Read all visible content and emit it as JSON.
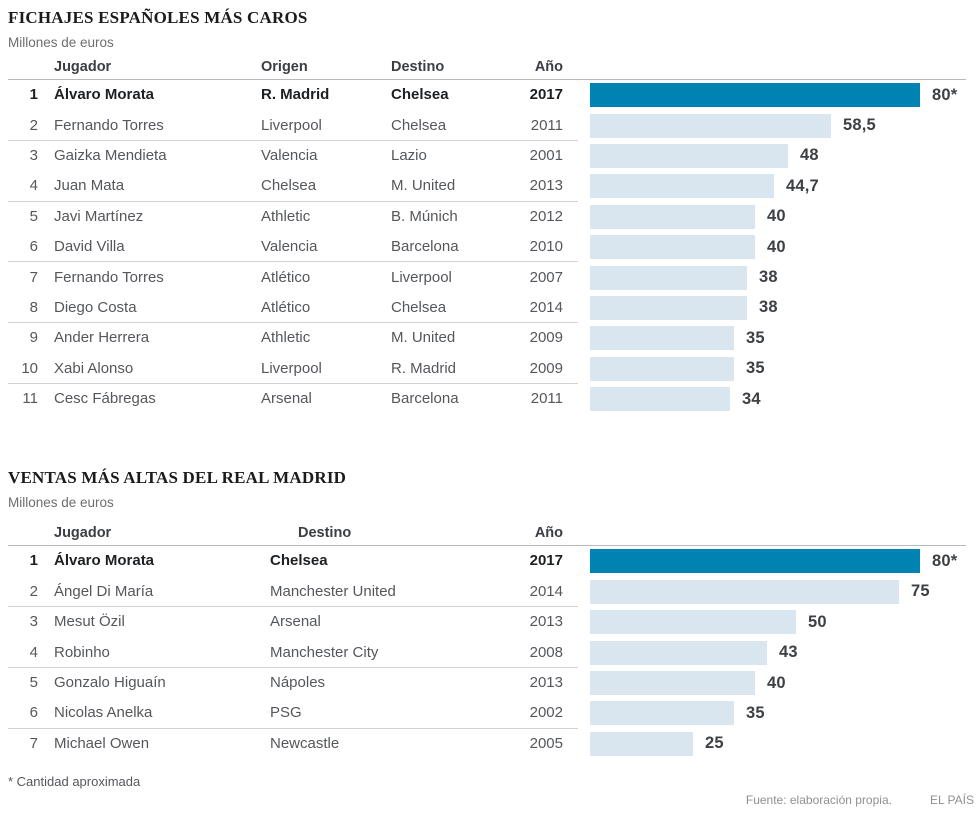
{
  "page": {
    "background": "#ffffff"
  },
  "colors": {
    "highlight_bar": "#0082b2",
    "bar": "#d9e6f0",
    "row_text": "#54575b",
    "highlight_text": "#1d2023",
    "title_text": "#1b1b1b",
    "muted_text": "#8d9093"
  },
  "footnote": "* Cantidad aproximada",
  "source": "Fuente: elaboración propia.",
  "brand": "EL PAÍS",
  "chart_data": [
    {
      "type": "bar",
      "title": "FICHAJES ESPAÑOLES MÁS CAROS",
      "subtitle": "Millones de euros",
      "unit": "millones de euros",
      "xlim": [
        0,
        80
      ],
      "legend": "none",
      "grid": "off",
      "columns": [
        "Jugador",
        "Origen",
        "Destino",
        "Año"
      ],
      "rows": [
        {
          "rank": "1",
          "player": "Álvaro Morata",
          "origin": "R. Madrid",
          "destination": "Chelsea",
          "year": "2017",
          "value": 80,
          "label": "80*",
          "highlight": true
        },
        {
          "rank": "2",
          "player": "Fernando Torres",
          "origin": "Liverpool",
          "destination": "Chelsea",
          "year": "2011",
          "value": 58.5,
          "label": "58,5",
          "highlight": false
        },
        {
          "rank": "3",
          "player": "Gaizka Mendieta",
          "origin": "Valencia",
          "destination": "Lazio",
          "year": "2001",
          "value": 48,
          "label": "48",
          "highlight": false
        },
        {
          "rank": "4",
          "player": "Juan Mata",
          "origin": "Chelsea",
          "destination": "M. United",
          "year": "2013",
          "value": 44.7,
          "label": "44,7",
          "highlight": false
        },
        {
          "rank": "5",
          "player": "Javi Martínez",
          "origin": "Athletic",
          "destination": "B. Múnich",
          "year": "2012",
          "value": 40,
          "label": "40",
          "highlight": false
        },
        {
          "rank": "6",
          "player": "David Villa",
          "origin": "Valencia",
          "destination": "Barcelona",
          "year": "2010",
          "value": 40,
          "label": "40",
          "highlight": false
        },
        {
          "rank": "7",
          "player": "Fernando Torres",
          "origin": "Atlético",
          "destination": "Liverpool",
          "year": "2007",
          "value": 38,
          "label": "38",
          "highlight": false
        },
        {
          "rank": "8",
          "player": "Diego Costa",
          "origin": "Atlético",
          "destination": "Chelsea",
          "year": "2014",
          "value": 38,
          "label": "38",
          "highlight": false
        },
        {
          "rank": "9",
          "player": "Ander Herrera",
          "origin": "Athletic",
          "destination": "M. United",
          "year": "2009",
          "value": 35,
          "label": "35",
          "highlight": false
        },
        {
          "rank": "10",
          "player": "Xabi Alonso",
          "origin": "Liverpool",
          "destination": "R. Madrid",
          "year": "2009",
          "value": 35,
          "label": "35",
          "highlight": false
        },
        {
          "rank": "11",
          "player": "Cesc Fábregas",
          "origin": "Arsenal",
          "destination": "Barcelona",
          "year": "2011",
          "value": 34,
          "label": "34",
          "highlight": false
        }
      ]
    },
    {
      "type": "bar",
      "title": "VENTAS MÁS ALTAS DEL REAL MADRID",
      "subtitle": "Millones de euros",
      "unit": "millones de euros",
      "xlim": [
        0,
        80
      ],
      "legend": "none",
      "grid": "off",
      "columns": [
        "Jugador",
        "Destino",
        "Año"
      ],
      "rows": [
        {
          "rank": "1",
          "player": "Álvaro Morata",
          "destination": "Chelsea",
          "year": "2017",
          "value": 80,
          "label": "80*",
          "highlight": true
        },
        {
          "rank": "2",
          "player": "Ángel Di María",
          "destination": "Manchester United",
          "year": "2014",
          "value": 75,
          "label": "75",
          "highlight": false
        },
        {
          "rank": "3",
          "player": "Mesut Özil",
          "destination": "Arsenal",
          "year": "2013",
          "value": 50,
          "label": "50",
          "highlight": false
        },
        {
          "rank": "4",
          "player": "Robinho",
          "destination": "Manchester City",
          "year": "2008",
          "value": 43,
          "label": "43",
          "highlight": false
        },
        {
          "rank": "5",
          "player": "Gonzalo Higuaín",
          "destination": "Nápoles",
          "year": "2013",
          "value": 40,
          "label": "40",
          "highlight": false
        },
        {
          "rank": "6",
          "player": "Nicolas Anelka",
          "destination": "PSG",
          "year": "2002",
          "value": 35,
          "label": "35",
          "highlight": false
        },
        {
          "rank": "7",
          "player": "Michael Owen",
          "destination": "Newcastle",
          "year": "2005",
          "value": 25,
          "label": "25",
          "highlight": false
        }
      ]
    }
  ]
}
